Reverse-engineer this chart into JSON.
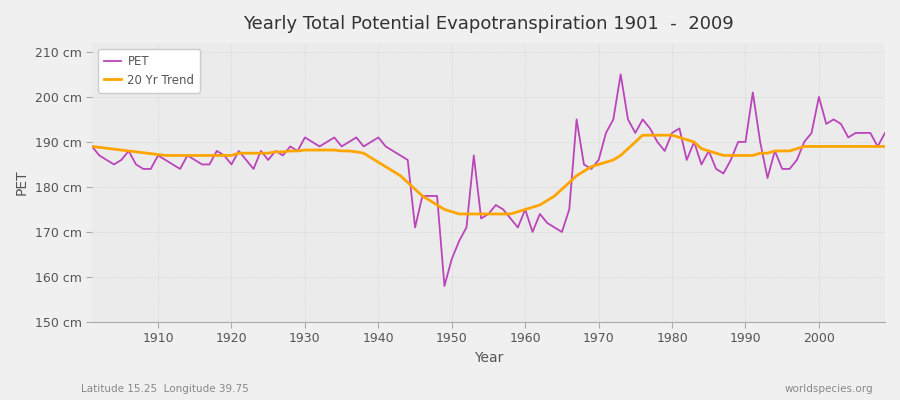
{
  "title": "Yearly Total Potential Evapotranspiration 1901  -  2009",
  "xlabel": "Year",
  "ylabel": "PET",
  "subtitle_left": "Latitude 15.25  Longitude 39.75",
  "subtitle_right": "worldspecies.org",
  "ylim": [
    150,
    212
  ],
  "yticks": [
    150,
    160,
    170,
    180,
    190,
    200,
    210
  ],
  "ytick_labels": [
    "150 cm",
    "160 cm",
    "170 cm",
    "180 cm",
    "190 cm",
    "200 cm",
    "210 cm"
  ],
  "xlim": [
    1901,
    2009
  ],
  "pet_color": "#bb44bb",
  "trend_color": "#ffa500",
  "background_color": "#f0f0f0",
  "plot_bg_color": "#ebebeb",
  "grid_color": "#cccccc",
  "pet_linewidth": 1.3,
  "trend_linewidth": 2.0,
  "years": [
    1901,
    1902,
    1903,
    1904,
    1905,
    1906,
    1907,
    1908,
    1909,
    1910,
    1911,
    1912,
    1913,
    1914,
    1915,
    1916,
    1917,
    1918,
    1919,
    1920,
    1921,
    1922,
    1923,
    1924,
    1925,
    1926,
    1927,
    1928,
    1929,
    1930,
    1931,
    1932,
    1933,
    1934,
    1935,
    1936,
    1937,
    1938,
    1939,
    1940,
    1941,
    1942,
    1943,
    1944,
    1945,
    1946,
    1947,
    1948,
    1949,
    1950,
    1951,
    1952,
    1953,
    1954,
    1955,
    1956,
    1957,
    1958,
    1959,
    1960,
    1961,
    1962,
    1963,
    1964,
    1965,
    1966,
    1967,
    1968,
    1969,
    1970,
    1971,
    1972,
    1973,
    1974,
    1975,
    1976,
    1977,
    1978,
    1979,
    1980,
    1981,
    1982,
    1983,
    1984,
    1985,
    1986,
    1987,
    1988,
    1989,
    1990,
    1991,
    1992,
    1993,
    1994,
    1995,
    1996,
    1997,
    1998,
    1999,
    2000,
    2001,
    2002,
    2003,
    2004,
    2005,
    2006,
    2007,
    2008,
    2009
  ],
  "pet_values": [
    189,
    187,
    186,
    185,
    186,
    188,
    185,
    184,
    184,
    187,
    186,
    185,
    184,
    187,
    186,
    185,
    185,
    188,
    187,
    185,
    188,
    186,
    184,
    188,
    186,
    188,
    187,
    189,
    188,
    191,
    190,
    189,
    190,
    191,
    189,
    190,
    191,
    189,
    190,
    191,
    189,
    188,
    187,
    186,
    171,
    178,
    178,
    178,
    158,
    164,
    168,
    171,
    187,
    173,
    174,
    176,
    175,
    173,
    171,
    175,
    170,
    174,
    172,
    171,
    170,
    175,
    195,
    185,
    184,
    186,
    192,
    195,
    205,
    195,
    192,
    195,
    193,
    190,
    188,
    192,
    193,
    186,
    190,
    185,
    188,
    184,
    183,
    186,
    190,
    190,
    201,
    190,
    182,
    188,
    184,
    184,
    186,
    190,
    192,
    200,
    194,
    195,
    194,
    191,
    192,
    192,
    192,
    189,
    192
  ],
  "trend_values": [
    189.0,
    188.8,
    188.6,
    188.4,
    188.2,
    188.0,
    187.8,
    187.6,
    187.4,
    187.2,
    187.0,
    187.0,
    187.0,
    187.0,
    187.0,
    187.0,
    187.0,
    187.0,
    187.0,
    187.0,
    187.5,
    187.5,
    187.5,
    187.5,
    187.5,
    187.8,
    187.8,
    188.0,
    188.0,
    188.2,
    188.2,
    188.2,
    188.2,
    188.2,
    188.0,
    188.0,
    187.8,
    187.5,
    186.5,
    185.5,
    184.5,
    183.5,
    182.5,
    181.0,
    179.5,
    178.0,
    177.0,
    176.0,
    175.0,
    174.5,
    174.0,
    174.0,
    174.0,
    174.0,
    174.0,
    174.0,
    174.0,
    174.0,
    174.5,
    175.0,
    175.5,
    176.0,
    177.0,
    178.0,
    179.5,
    181.0,
    182.5,
    183.5,
    184.5,
    185.0,
    185.5,
    186.0,
    187.0,
    188.5,
    190.0,
    191.5,
    191.5,
    191.5,
    191.5,
    191.5,
    191.0,
    190.5,
    190.0,
    188.5,
    188.0,
    187.5,
    187.0,
    187.0,
    187.0,
    187.0,
    187.0,
    187.5,
    187.5,
    188.0,
    188.0,
    188.0,
    188.5,
    189.0,
    189.0,
    189.0,
    189.0,
    189.0,
    189.0,
    189.0,
    189.0,
    189.0,
    189.0,
    189.0,
    189.0
  ]
}
